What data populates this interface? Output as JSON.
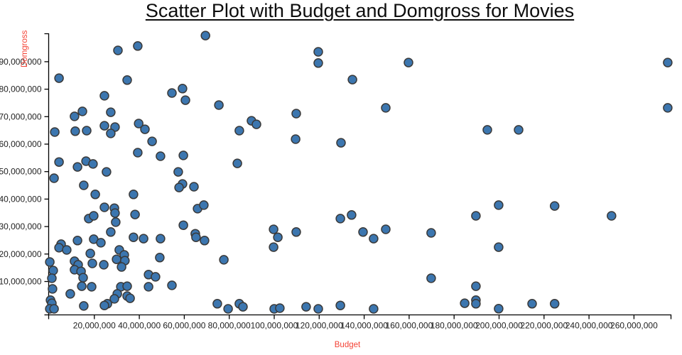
{
  "title": "Scatter Plot with Budget and Domgross for Movies",
  "chart_data": {
    "type": "scatter",
    "title": "Scatter Plot with Budget and Domgross for Movies",
    "xlabel": "Budget",
    "ylabel": "Domgross",
    "units_note": "point values in millions of USD",
    "xlim_musd": [
      0,
      277
    ],
    "ylim_musd": [
      0,
      100
    ],
    "grid": false,
    "legend": "none",
    "x_tick_values_musd": [
      20,
      40,
      60,
      80,
      100,
      120,
      140,
      160,
      180,
      200,
      220,
      240,
      260
    ],
    "x_tick_labels": [
      "20,000,000",
      "40,000,000",
      "60,000,000",
      "80,000,000",
      "100,000,000",
      "120,000,000",
      "140,000,000",
      "160,000,000",
      "180,000,000",
      "200,000,000",
      "220,000,000",
      "240,000,000",
      "260,000,000"
    ],
    "y_tick_values_musd": [
      10,
      20,
      30,
      40,
      50,
      60,
      70,
      80,
      90
    ],
    "y_tick_labels": [
      "10,000,000",
      "20,000,000",
      "30,000,000",
      "40,000,000",
      "50,000,000",
      "60,000,000",
      "70,000,000",
      "80,000,000",
      "90,000,000"
    ],
    "points_musd": [
      [
        30.5,
        94.1
      ],
      [
        39.3,
        95.7
      ],
      [
        4.3,
        84.0
      ],
      [
        34.6,
        83.3
      ],
      [
        24.5,
        77.6
      ],
      [
        59.2,
        80.2
      ],
      [
        54.5,
        78.6
      ],
      [
        60.5,
        76.0
      ],
      [
        27.3,
        71.6
      ],
      [
        14.7,
        71.9
      ],
      [
        11.2,
        70.1
      ],
      [
        24.5,
        66.7
      ],
      [
        29.2,
        66.2
      ],
      [
        27.3,
        63.9
      ],
      [
        39.7,
        67.5
      ],
      [
        42.5,
        65.4
      ],
      [
        2.4,
        64.4
      ],
      [
        11.5,
        64.7
      ],
      [
        16.6,
        64.9
      ],
      [
        45.7,
        61.0
      ],
      [
        39.3,
        56.9
      ],
      [
        49.4,
        55.6
      ],
      [
        59.6,
        55.9
      ],
      [
        4.3,
        53.5
      ],
      [
        12.5,
        51.7
      ],
      [
        16.3,
        53.8
      ],
      [
        19.4,
        52.8
      ],
      [
        2.1,
        47.6
      ],
      [
        25.4,
        49.9
      ],
      [
        57.3,
        49.9
      ],
      [
        15.3,
        45.0
      ],
      [
        59.2,
        45.5
      ],
      [
        57.7,
        44.2
      ],
      [
        64.3,
        44.5
      ],
      [
        20.4,
        41.7
      ],
      [
        37.4,
        41.7
      ],
      [
        24.5,
        37.0
      ],
      [
        28.9,
        36.7
      ],
      [
        29.2,
        34.9
      ],
      [
        17.5,
        32.9
      ],
      [
        19.7,
        33.9
      ],
      [
        29.5,
        31.6
      ],
      [
        38.1,
        34.4
      ],
      [
        27.3,
        28.0
      ],
      [
        59.6,
        30.5
      ],
      [
        64.9,
        27.4
      ],
      [
        65.2,
        26.1
      ],
      [
        69.0,
        24.9
      ],
      [
        12.5,
        24.9
      ],
      [
        19.7,
        25.4
      ],
      [
        22.9,
        24.1
      ],
      [
        37.4,
        26.1
      ],
      [
        41.9,
        25.6
      ],
      [
        49.4,
        25.6
      ],
      [
        5.2,
        23.6
      ],
      [
        4.3,
        22.3
      ],
      [
        7.7,
        21.5
      ],
      [
        18.2,
        20.2
      ],
      [
        31.1,
        21.5
      ],
      [
        33.3,
        19.7
      ],
      [
        29.9,
        18.1
      ],
      [
        33.6,
        17.6
      ],
      [
        32.1,
        15.3
      ],
      [
        0.2,
        17.1
      ],
      [
        11.2,
        17.4
      ],
      [
        12.8,
        16.1
      ],
      [
        11.2,
        14.3
      ],
      [
        14.1,
        13.7
      ],
      [
        19.1,
        16.6
      ],
      [
        24.2,
        16.1
      ],
      [
        15.0,
        11.4
      ],
      [
        1.7,
        14.0
      ],
      [
        1.1,
        11.2
      ],
      [
        1.4,
        7.3
      ],
      [
        49.1,
        18.7
      ],
      [
        44.1,
        12.5
      ],
      [
        47.2,
        11.7
      ],
      [
        14.4,
        8.3
      ],
      [
        18.8,
        8.1
      ],
      [
        9.3,
        5.5
      ],
      [
        31.8,
        8.1
      ],
      [
        34.6,
        8.3
      ],
      [
        30.2,
        5.5
      ],
      [
        34.6,
        4.7
      ],
      [
        35.9,
        3.9
      ],
      [
        28.9,
        3.7
      ],
      [
        25.8,
        1.9
      ],
      [
        44.1,
        8.1
      ],
      [
        54.5,
        8.6
      ],
      [
        15.3,
        1.1
      ],
      [
        24.5,
        1.3
      ],
      [
        0.5,
        3.2
      ],
      [
        1.1,
        2.1
      ],
      [
        0.2,
        0.05
      ],
      [
        2.1,
        0.05
      ],
      [
        65.9,
        36.5
      ],
      [
        69.4,
        99.5
      ],
      [
        119.6,
        93.6
      ],
      [
        119.6,
        89.5
      ],
      [
        134.8,
        83.5
      ],
      [
        75.4,
        74.2
      ],
      [
        109.8,
        71.1
      ],
      [
        89.9,
        68.5
      ],
      [
        92.1,
        67.2
      ],
      [
        84.5,
        64.9
      ],
      [
        109.5,
        61.8
      ],
      [
        129.7,
        60.5
      ],
      [
        83.6,
        53.0
      ],
      [
        68.7,
        37.8
      ],
      [
        77.6,
        17.9
      ],
      [
        99.7,
        29.0
      ],
      [
        101.6,
        26.1
      ],
      [
        99.7,
        22.5
      ],
      [
        109.8,
        28.0
      ],
      [
        129.4,
        32.9
      ],
      [
        134.4,
        34.2
      ],
      [
        139.5,
        28.0
      ],
      [
        74.7,
        1.9
      ],
      [
        79.5,
        0.05
      ],
      [
        84.5,
        1.9
      ],
      [
        86.1,
        0.8
      ],
      [
        100.0,
        0.05
      ],
      [
        102.5,
        0.3
      ],
      [
        114.2,
        0.8
      ],
      [
        119.6,
        0.05
      ],
      [
        129.4,
        1.3
      ],
      [
        159.7,
        89.7
      ],
      [
        149.6,
        73.2
      ],
      [
        194.8,
        65.2
      ],
      [
        208.7,
        65.2
      ],
      [
        144.2,
        25.6
      ],
      [
        149.6,
        29.0
      ],
      [
        169.8,
        27.7
      ],
      [
        189.7,
        33.9
      ],
      [
        199.8,
        37.8
      ],
      [
        199.8,
        22.5
      ],
      [
        169.8,
        11.2
      ],
      [
        189.7,
        8.3
      ],
      [
        184.7,
        2.1
      ],
      [
        189.7,
        3.2
      ],
      [
        189.7,
        1.9
      ],
      [
        144.2,
        0.05
      ],
      [
        199.8,
        0.1
      ],
      [
        275.0,
        89.7
      ],
      [
        275.0,
        73.2
      ],
      [
        224.7,
        37.5
      ],
      [
        250.0,
        33.9
      ],
      [
        214.7,
        1.9
      ],
      [
        224.7,
        1.9
      ]
    ]
  },
  "style": {
    "marker_fill": "#3c76af",
    "marker_stroke": "#3a3a3a",
    "axis_color": "#000000",
    "axis_label_color": "#f44336",
    "tick_label_color": "#1f1f1f",
    "background": "#ffffff"
  }
}
